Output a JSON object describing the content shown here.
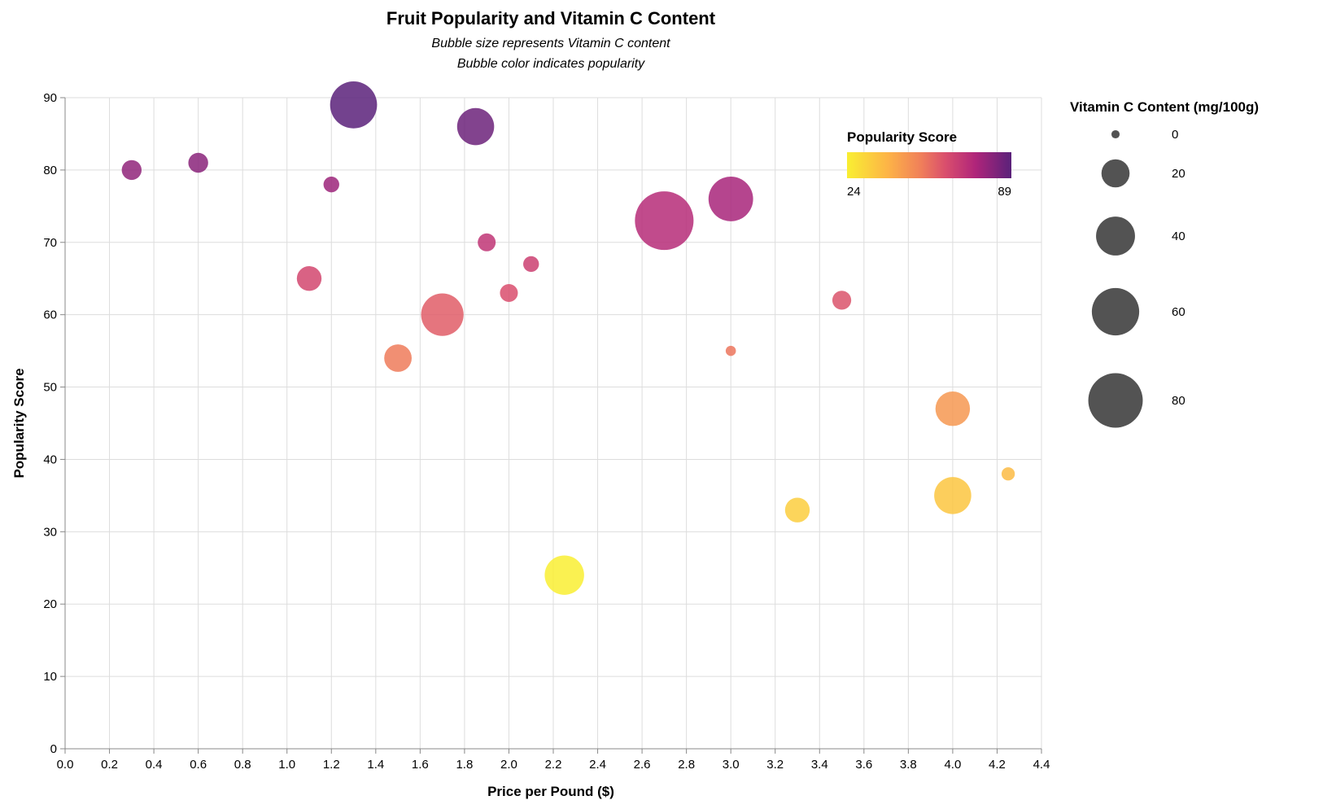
{
  "chart_data": {
    "type": "scatter",
    "title": "Fruit Popularity and Vitamin C Content",
    "subtitle": [
      "Bubble size represents Vitamin C content",
      "Bubble color indicates popularity"
    ],
    "xlabel": "Price per Pound ($)",
    "ylabel": "Popularity Score",
    "xlim": [
      0,
      4.4
    ],
    "ylim": [
      0,
      90
    ],
    "x_ticks": [
      "0.0",
      "0.2",
      "0.4",
      "0.6",
      "0.8",
      "1.0",
      "1.2",
      "1.4",
      "1.6",
      "1.8",
      "2.0",
      "2.2",
      "2.4",
      "2.6",
      "2.8",
      "3.0",
      "3.2",
      "3.4",
      "3.6",
      "3.8",
      "4.0",
      "4.2",
      "4.4"
    ],
    "y_ticks": [
      "0",
      "10",
      "20",
      "30",
      "40",
      "50",
      "60",
      "70",
      "80",
      "90"
    ],
    "grid": true,
    "color_legend": {
      "title": "Popularity Score",
      "min_label": "24",
      "max_label": "89",
      "min": 24,
      "max": 89,
      "placement": "top-right inside plot"
    },
    "size_legend": {
      "title": "Vitamin C Content (mg/100g)",
      "values": [
        0,
        20,
        40,
        60,
        80
      ],
      "labels": [
        "0",
        "20",
        "40",
        "60",
        "80"
      ],
      "placement": "right"
    },
    "points": [
      {
        "x": 0.3,
        "y": 80,
        "vitc": 9
      },
      {
        "x": 0.6,
        "y": 81,
        "vitc": 9
      },
      {
        "x": 1.2,
        "y": 78,
        "vitc": 5
      },
      {
        "x": 1.3,
        "y": 89,
        "vitc": 59
      },
      {
        "x": 1.85,
        "y": 86,
        "vitc": 36
      },
      {
        "x": 1.1,
        "y": 65,
        "vitc": 15
      },
      {
        "x": 1.9,
        "y": 70,
        "vitc": 7
      },
      {
        "x": 2.1,
        "y": 67,
        "vitc": 5
      },
      {
        "x": 2.0,
        "y": 63,
        "vitc": 7
      },
      {
        "x": 1.7,
        "y": 60,
        "vitc": 48
      },
      {
        "x": 1.5,
        "y": 54,
        "vitc": 19
      },
      {
        "x": 2.7,
        "y": 73,
        "vitc": 93
      },
      {
        "x": 3.0,
        "y": 76,
        "vitc": 53
      },
      {
        "x": 3.0,
        "y": 55,
        "vitc": 1
      },
      {
        "x": 3.5,
        "y": 62,
        "vitc": 8
      },
      {
        "x": 4.0,
        "y": 47,
        "vitc": 31
      },
      {
        "x": 4.25,
        "y": 38,
        "vitc": 3
      },
      {
        "x": 4.0,
        "y": 35,
        "vitc": 36
      },
      {
        "x": 3.3,
        "y": 33,
        "vitc": 15
      },
      {
        "x": 2.25,
        "y": 24,
        "vitc": 41
      }
    ]
  }
}
